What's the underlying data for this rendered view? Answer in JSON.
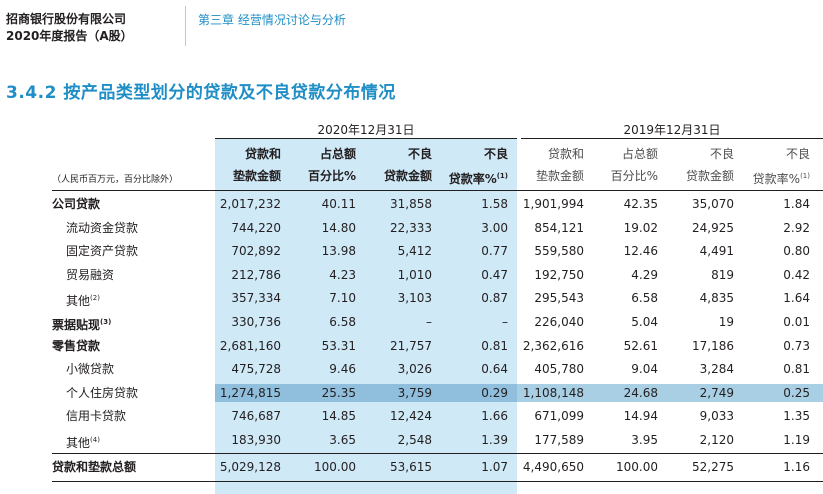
{
  "header": {
    "company": "招商银行股份有限公司",
    "report": "2020年度报告（A股）",
    "chapter": "第三章 经营情况讨论与分析"
  },
  "section_title": "3.4.2 按产品类型划分的贷款及不良贷款分布情况",
  "unit_note": "（人民币百万元，百分比除外）",
  "years": {
    "y2020": "2020年12月31日",
    "y2019": "2019年12月31日"
  },
  "columns_2020": [
    {
      "line1": "贷款和",
      "line2": "垫款金额"
    },
    {
      "line1": "占总额",
      "line2": "百分比%"
    },
    {
      "line1": "不良",
      "line2": "贷款金额"
    },
    {
      "line1": "不良",
      "line2": "贷款率%",
      "note": "(1)"
    }
  ],
  "columns_2019": [
    {
      "line1": "贷款和",
      "line2": "垫款金额"
    },
    {
      "line1": "占总额",
      "line2": "百分比%"
    },
    {
      "line1": "不良",
      "line2": "贷款金额"
    },
    {
      "line1": "不良",
      "line2": "贷款率%",
      "note": "(1)"
    }
  ],
  "rows": [
    {
      "label": "公司贷款",
      "note": "",
      "v": [
        "2,017,232",
        "40.11",
        "31,858",
        "1.58",
        "1,901,994",
        "42.35",
        "35,070",
        "1.84"
      ]
    },
    {
      "label": "流动资金贷款",
      "note": "",
      "v": [
        "744,220",
        "14.80",
        "22,333",
        "3.00",
        "854,121",
        "19.02",
        "24,925",
        "2.92"
      ]
    },
    {
      "label": "固定资产贷款",
      "note": "",
      "v": [
        "702,892",
        "13.98",
        "5,412",
        "0.77",
        "559,580",
        "12.46",
        "4,491",
        "0.80"
      ]
    },
    {
      "label": "贸易融资",
      "note": "",
      "v": [
        "212,786",
        "4.23",
        "1,010",
        "0.47",
        "192,750",
        "4.29",
        "819",
        "0.42"
      ]
    },
    {
      "label": "其他",
      "note": "(2)",
      "v": [
        "357,334",
        "7.10",
        "3,103",
        "0.87",
        "295,543",
        "6.58",
        "4,835",
        "1.64"
      ]
    },
    {
      "label": "票据贴现",
      "note": "(3)",
      "v": [
        "330,736",
        "6.58",
        "–",
        "–",
        "226,040",
        "5.04",
        "19",
        "0.01"
      ]
    },
    {
      "label": "零售贷款",
      "note": "",
      "v": [
        "2,681,160",
        "53.31",
        "21,757",
        "0.81",
        "2,362,616",
        "52.61",
        "17,186",
        "0.73"
      ]
    },
    {
      "label": "小微贷款",
      "note": "",
      "v": [
        "475,728",
        "9.46",
        "3,026",
        "0.64",
        "405,780",
        "9.04",
        "3,284",
        "0.81"
      ]
    },
    {
      "label": "个人住房贷款",
      "note": "",
      "v": [
        "1,274,815",
        "25.35",
        "3,759",
        "0.29",
        "1,108,148",
        "24.68",
        "2,749",
        "0.25"
      ]
    },
    {
      "label": "信用卡贷款",
      "note": "",
      "v": [
        "746,687",
        "14.85",
        "12,424",
        "1.66",
        "671,099",
        "14.94",
        "9,033",
        "1.35"
      ]
    },
    {
      "label": "其他",
      "note": "(4)",
      "v": [
        "183,930",
        "3.65",
        "2,548",
        "1.39",
        "177,589",
        "3.95",
        "2,120",
        "1.19"
      ]
    }
  ],
  "total": {
    "label": "贷款和垫款总额",
    "v": [
      "5,029,128",
      "100.00",
      "53,615",
      "1.07",
      "4,490,650",
      "100.00",
      "52,275",
      "1.16"
    ]
  },
  "colors": {
    "accent": "#1f8ec6",
    "highlight": "#cfe9f7",
    "row_highlight": "#a9cfe5"
  }
}
